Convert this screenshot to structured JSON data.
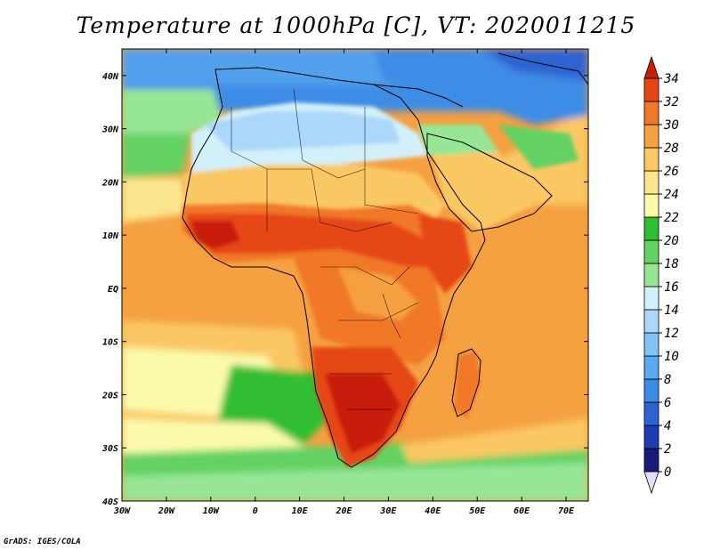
{
  "title": "Temperature at 1000hPa [C], VT: 2020011215",
  "footer": "GrADS: IGES/COLA",
  "map": {
    "lon_range": [
      -30,
      75
    ],
    "lat_range": [
      -40,
      45
    ],
    "lat_ticks": [
      {
        "value": 40,
        "label": "40N"
      },
      {
        "value": 30,
        "label": "30N"
      },
      {
        "value": 20,
        "label": "20N"
      },
      {
        "value": 10,
        "label": "10N"
      },
      {
        "value": 0,
        "label": "EQ"
      },
      {
        "value": -10,
        "label": "10S"
      },
      {
        "value": -20,
        "label": "20S"
      },
      {
        "value": -30,
        "label": "30S"
      },
      {
        "value": -40,
        "label": "40S"
      }
    ],
    "lon_ticks": [
      {
        "value": -30,
        "label": "30W"
      },
      {
        "value": -20,
        "label": "20W"
      },
      {
        "value": -10,
        "label": "10W"
      },
      {
        "value": 0,
        "label": "0"
      },
      {
        "value": 10,
        "label": "10E"
      },
      {
        "value": 20,
        "label": "20E"
      },
      {
        "value": 30,
        "label": "30E"
      },
      {
        "value": 40,
        "label": "40E"
      },
      {
        "value": 50,
        "label": "50E"
      },
      {
        "value": 60,
        "label": "60E"
      },
      {
        "value": 70,
        "label": "70E"
      }
    ]
  },
  "colorbar": {
    "levels": [
      0,
      2,
      4,
      6,
      8,
      10,
      12,
      14,
      16,
      18,
      20,
      22,
      24,
      26,
      28,
      30,
      32,
      34
    ],
    "colors": [
      "#1a1a78",
      "#1e3cb4",
      "#2d64d2",
      "#3c8ce6",
      "#5aaaf0",
      "#82c3f5",
      "#aad7fa",
      "#d2f0fa",
      "#96e696",
      "#64d264",
      "#32be32",
      "#fafaaa",
      "#fae68c",
      "#fac864",
      "#f5a041",
      "#f07828",
      "#e64614",
      "#c81e0a"
    ],
    "low_color": "#e6dcfa",
    "high_color": "#c81e0a"
  }
}
